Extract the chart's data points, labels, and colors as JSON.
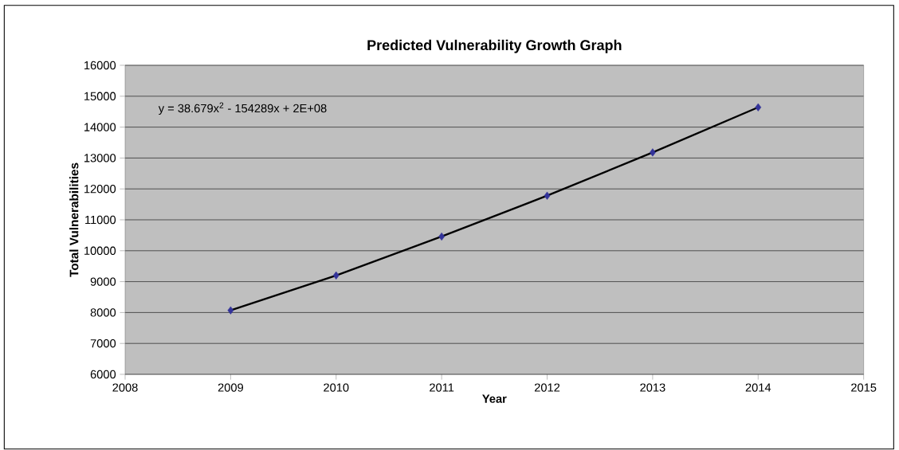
{
  "chart_data": {
    "type": "scatter",
    "title": "Predicted Vulnerability Growth Graph",
    "xlabel": "Year",
    "ylabel": "Total Vulnerabilities",
    "annotations": [
      "y = 38.679x$^{2}$ - 154289x + 2E+08"
    ],
    "xlim": [
      2008,
      2015
    ],
    "xticks": [
      2008,
      2009,
      2010,
      2011,
      2012,
      2013,
      2014,
      2015
    ],
    "ylim": [
      6000,
      16000
    ],
    "yticks": [
      6000,
      7000,
      8000,
      9000,
      10000,
      11000,
      12000,
      13000,
      14000,
      15000,
      16000
    ],
    "grid": "y",
    "series": [
      {
        "type": "line",
        "color": "#000000",
        "marker": "none",
        "x": [
          2009,
          2010,
          2011,
          2012,
          2013,
          2014
        ],
        "values": [
          8070,
          9200,
          10460,
          11780,
          13180,
          14640
        ]
      },
      {
        "color": "#333399",
        "marker": "diamond",
        "x": [
          2009,
          2010,
          2011,
          2012,
          2013,
          2014
        ],
        "values": [
          8070,
          9200,
          10460,
          11780,
          13180,
          14640
        ]
      }
    ]
  }
}
